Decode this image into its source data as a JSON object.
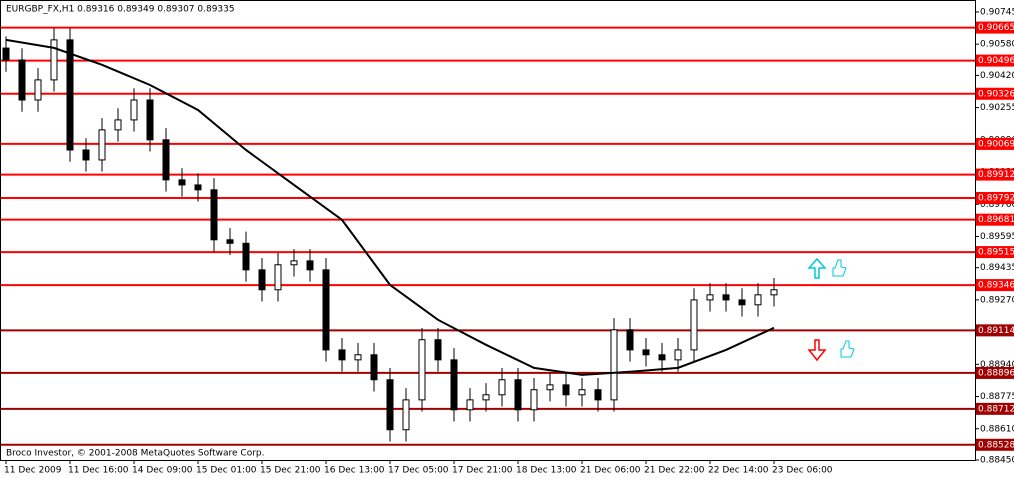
{
  "chart_data": {
    "type": "candlestick",
    "title": "EURGBP_FX,H1  0.89316 0.89349 0.89307 0.89335",
    "footer": "Broco Investor, © 2001-2008 MetaQuotes Software Corp.",
    "categories": [
      "11 Dec 2009",
      null,
      null,
      null,
      "11 Dec 16:00",
      null,
      null,
      null,
      "14 Dec 09:00",
      null,
      null,
      null,
      "15 Dec 01:00",
      null,
      null,
      null,
      "15 Dec 21:00",
      null,
      null,
      null,
      "16 Dec 13:00",
      null,
      null,
      null,
      "17 Dec 05:00",
      null,
      null,
      null,
      "17 Dec 21:00",
      null,
      null,
      null,
      "18 Dec 13:00",
      null,
      null,
      null,
      "21 Dec 06:00",
      null,
      null,
      null,
      "21 Dec 22:00",
      null,
      null,
      null,
      "22 Dec 14:00",
      null,
      null,
      null,
      "23 Dec 06:00"
    ],
    "open": [
      0.9056,
      0.90499,
      0.90294,
      0.90397,
      0.90602,
      0.90038,
      0.89987,
      0.90141,
      0.90192,
      0.90294,
      0.9009,
      0.89885,
      0.89859,
      0.89834,
      0.89578,
      0.8956,
      0.89424,
      0.89322,
      0.8945,
      0.8947,
      0.89424,
      0.89014,
      0.88963,
      0.88989,
      0.88861,
      0.88605,
      0.88758,
      0.89066,
      0.88963,
      0.88707,
      0.88758,
      0.88784,
      0.88861,
      0.88707,
      0.8881,
      0.88835,
      0.88784,
      0.8881,
      0.88758,
      0.89117,
      0.89014,
      0.88989,
      0.88963,
      0.89014,
      0.8927,
      0.89296,
      0.8927,
      0.89245,
      0.89296
    ],
    "high": [
      0.9062,
      0.90559,
      0.90457,
      0.90662,
      0.90662,
      0.90098,
      0.90201,
      0.90252,
      0.90354,
      0.90354,
      0.9015,
      0.89945,
      0.89919,
      0.89894,
      0.89638,
      0.8962,
      0.89484,
      0.8951,
      0.8953,
      0.8953,
      0.89484,
      0.89074,
      0.89049,
      0.89049,
      0.88921,
      0.88818,
      0.89126,
      0.89126,
      0.89023,
      0.88818,
      0.88844,
      0.88921,
      0.88921,
      0.8887,
      0.88895,
      0.88895,
      0.8887,
      0.8887,
      0.89177,
      0.89177,
      0.89074,
      0.89049,
      0.89074,
      0.8933,
      0.89356,
      0.89356,
      0.8933,
      0.89356,
      0.89382
    ],
    "low": [
      0.90439,
      0.90234,
      0.90234,
      0.90337,
      0.89978,
      0.89927,
      0.89927,
      0.90081,
      0.90132,
      0.9003,
      0.89825,
      0.89799,
      0.89774,
      0.89518,
      0.895,
      0.89364,
      0.89262,
      0.89262,
      0.8939,
      0.89364,
      0.88954,
      0.88903,
      0.88903,
      0.88801,
      0.88545,
      0.88545,
      0.88698,
      0.88903,
      0.88647,
      0.88647,
      0.88698,
      0.88724,
      0.88647,
      0.88647,
      0.8875,
      0.88724,
      0.88724,
      0.88698,
      0.88698,
      0.88954,
      0.88929,
      0.88903,
      0.88903,
      0.88954,
      0.8921,
      0.8921,
      0.89185,
      0.89185,
      0.89236
    ],
    "close": [
      0.90499,
      0.90294,
      0.90397,
      0.90602,
      0.90038,
      0.89987,
      0.90141,
      0.90192,
      0.90294,
      0.9009,
      0.89885,
      0.89859,
      0.89834,
      0.89578,
      0.8956,
      0.89424,
      0.89322,
      0.8945,
      0.8947,
      0.89424,
      0.89014,
      0.88963,
      0.88989,
      0.88861,
      0.88605,
      0.88758,
      0.89066,
      0.88963,
      0.88707,
      0.88758,
      0.88784,
      0.88861,
      0.88707,
      0.8881,
      0.88835,
      0.88784,
      0.8881,
      0.88758,
      0.89117,
      0.89014,
      0.88989,
      0.88963,
      0.89014,
      0.8927,
      0.89296,
      0.8927,
      0.89245,
      0.89296,
      0.89322
    ],
    "moving_average": {
      "x": [
        0,
        3,
        6,
        9,
        12,
        15,
        18,
        21,
        24,
        27,
        30,
        33,
        36,
        39,
        42,
        45,
        48
      ],
      "values": [
        0.90602,
        0.90561,
        0.90474,
        0.90371,
        0.90243,
        0.90038,
        0.89859,
        0.8968,
        0.89347,
        0.89168,
        0.8904,
        0.88922,
        0.88886,
        0.88902,
        0.88922,
        0.89014,
        0.89127
      ],
      "color": "#000000"
    },
    "levels": [
      0.90665,
      0.90496,
      0.90326,
      0.90069,
      0.89912,
      0.89792,
      0.89681,
      0.89515,
      0.89346,
      0.89114,
      0.88896,
      0.88712,
      0.88528
    ],
    "level_colors": [
      "#ff0000",
      "#ff0000",
      "#ff0000",
      "#ff0000",
      "#ff0000",
      "#ff0000",
      "#ff0000",
      "#ff0000",
      "#ff0000",
      "#a00000",
      "#a00000",
      "#a00000",
      "#a00000"
    ],
    "ylim": [
      0.8845,
      0.90796
    ],
    "yticks": [
      0.90745,
      {
        "value": 0.9058,
        "label": "0.90580"
      },
      {
        "value": 0.9042,
        "label": "0.90420"
      },
      0.90255,
      {
        "value": 0.9009,
        "label": "0.90090"
      },
      0.89925,
      {
        "value": 0.8976,
        "label": "0.89760"
      },
      0.89595,
      0.89435,
      {
        "value": 0.8927,
        "label": "0.89270"
      },
      0.89105,
      {
        "value": 0.8894,
        "label": "0.88940"
      },
      0.88775,
      {
        "value": 0.8861,
        "label": "0.88610"
      },
      {
        "value": 0.8845,
        "label": "0.88450"
      }
    ]
  }
}
